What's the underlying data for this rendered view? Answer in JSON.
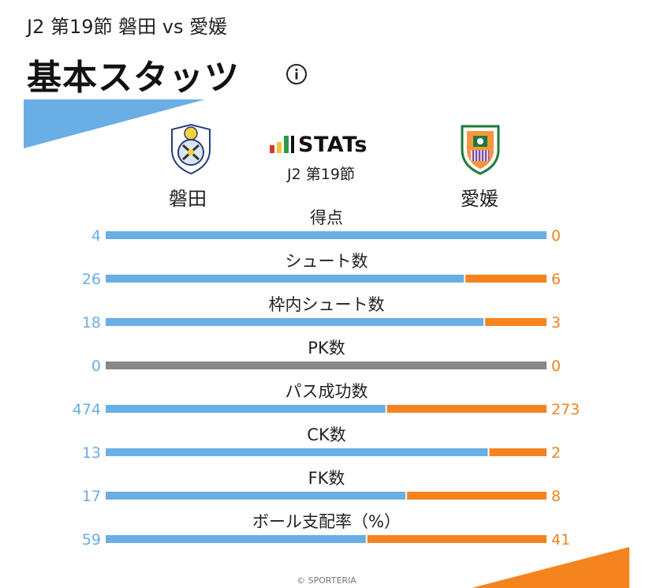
{
  "header": {
    "subtitle": "J2 第19節 磐田 vs 愛媛",
    "title": "基本スタッツ"
  },
  "brand": {
    "name": "STATs",
    "round": "J2 第19節"
  },
  "teams": {
    "home": "磐田",
    "away": "愛媛"
  },
  "colors": {
    "home": "#6aaee6",
    "away": "#f5841f",
    "neutral": "#888888",
    "home_text": "#6aaee6",
    "away_text": "#f5841f"
  },
  "chart_data": {
    "type": "bar",
    "orientation": "horizontal-stacked-comparison",
    "categories": [
      "得点",
      "シュート数",
      "枠内シュート数",
      "PK数",
      "パス成功数",
      "CK数",
      "FK数",
      "ボール支配率（%）"
    ],
    "series": [
      {
        "name": "磐田",
        "values": [
          4,
          26,
          18,
          0,
          474,
          13,
          17,
          59
        ]
      },
      {
        "name": "愛媛",
        "values": [
          0,
          6,
          3,
          0,
          273,
          2,
          8,
          41
        ]
      }
    ]
  },
  "footer": {
    "copyright": "© SPORTERIA"
  }
}
